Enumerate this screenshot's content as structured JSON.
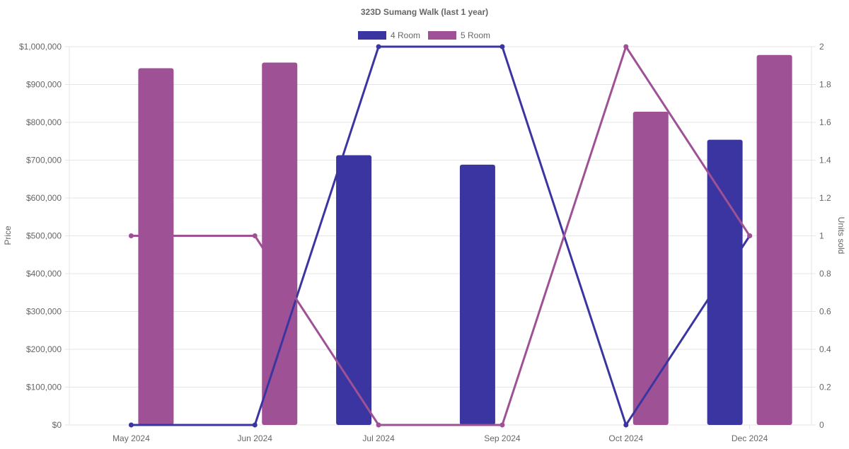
{
  "chart_data": {
    "type": "bar",
    "title": "323D Sumang Walk (last 1 year)",
    "categories": [
      "May 2024",
      "Jun 2024",
      "Jul 2024",
      "Sep 2024",
      "Oct 2024",
      "Dec 2024"
    ],
    "ylabel_left": "Price",
    "ylabel_right": "Units sold",
    "ylim_left": [
      0,
      1000000
    ],
    "ylim_right": [
      0,
      2
    ],
    "yticks_left": [
      "$0",
      "$100,000",
      "$200,000",
      "$300,000",
      "$400,000",
      "$500,000",
      "$600,000",
      "$700,000",
      "$800,000",
      "$900,000",
      "$1,000,000"
    ],
    "yticks_right": [
      "0",
      "0.2",
      "0.4",
      "0.6",
      "0.8",
      "1",
      "1.2",
      "1.4",
      "1.6",
      "1.8",
      "2"
    ],
    "legend_position": "top-center",
    "grid": true,
    "series": [
      {
        "name": "4 Room",
        "color": "#3a35a1",
        "price": [
          null,
          null,
          713000,
          688000,
          null,
          754000
        ],
        "units": [
          0,
          0,
          2,
          2,
          0,
          1
        ]
      },
      {
        "name": "5 Room",
        "color": "#9e5195",
        "price": [
          943000,
          958000,
          null,
          null,
          828000,
          978000
        ],
        "units": [
          1,
          1,
          0,
          0,
          2,
          1
        ]
      }
    ]
  }
}
